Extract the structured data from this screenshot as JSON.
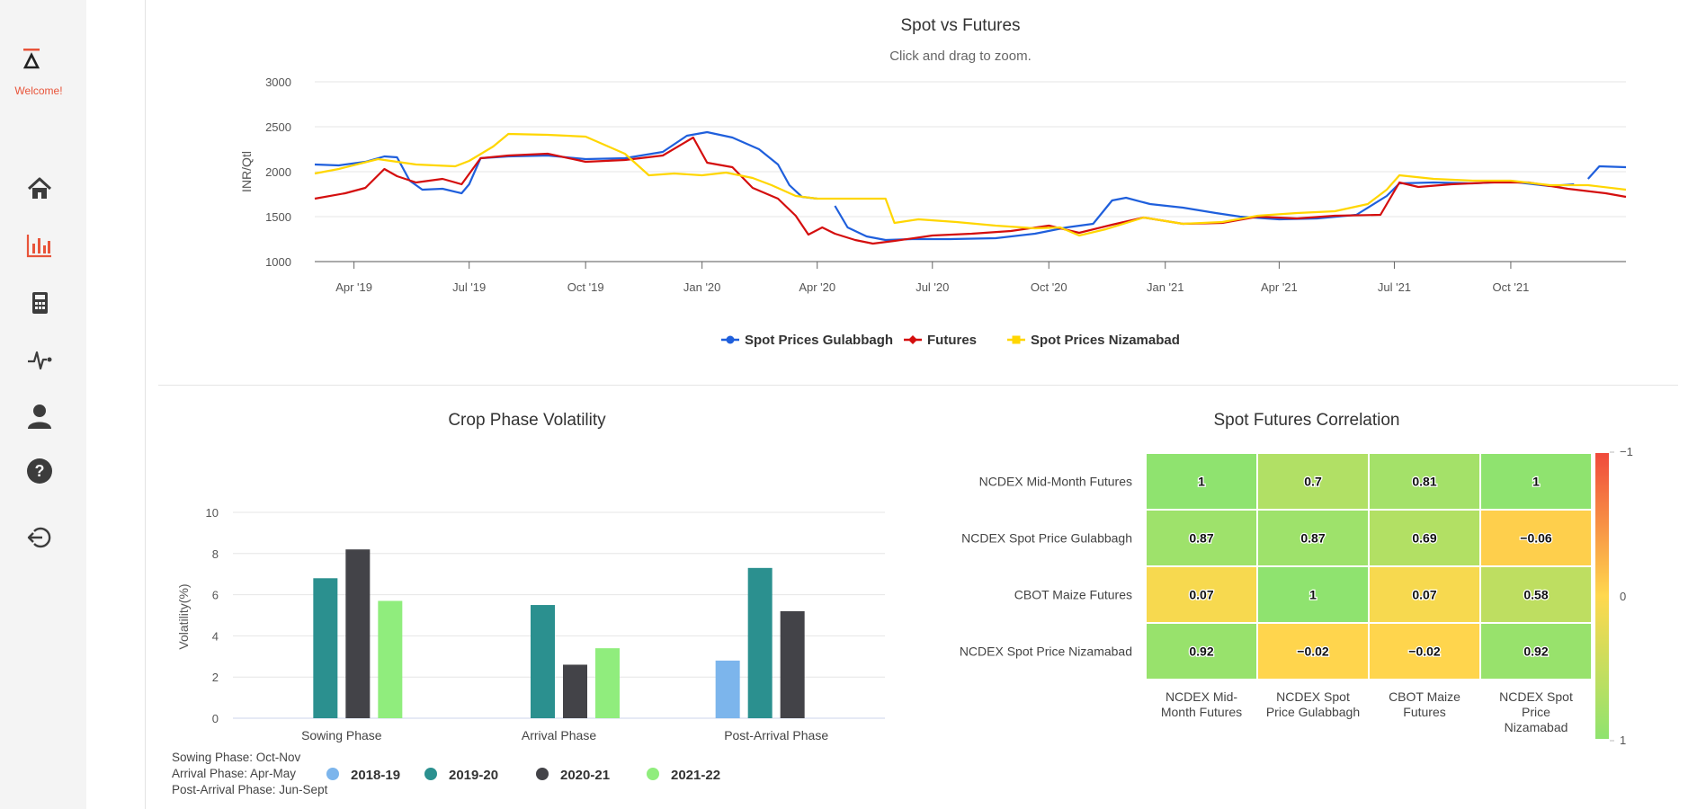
{
  "sidebar": {
    "welcome": "Welcome!",
    "accent": "#e8543a",
    "items": [
      {
        "icon": "home-icon",
        "active": false
      },
      {
        "icon": "bar-chart-icon",
        "active": true
      },
      {
        "icon": "calculator-icon",
        "active": false
      },
      {
        "icon": "pulse-icon",
        "active": false
      },
      {
        "icon": "user-icon",
        "active": false
      },
      {
        "icon": "help-icon",
        "active": false
      },
      {
        "icon": "logout-icon",
        "active": false
      }
    ]
  },
  "spot_futures": {
    "title": "Spot vs Futures",
    "subtitle": "Click and drag to zoom.",
    "ylabel": "INR/Qtl",
    "y_ticks": [
      "3000",
      "2500",
      "2000",
      "1500",
      "1000"
    ],
    "x_ticks": [
      "Apr '19",
      "Jul '19",
      "Oct '19",
      "Jan '20",
      "Apr '20",
      "Jul '20",
      "Oct '20",
      "Jan '21",
      "Apr '21",
      "Jul '21",
      "Oct '21"
    ],
    "legend": [
      "Spot Prices Gulabbagh",
      "Futures",
      "Spot Prices Nizamabad"
    ]
  },
  "volatility": {
    "title": "Crop Phase Volatility",
    "ylabel": "Volatility(%)",
    "y_ticks": [
      "10",
      "8",
      "6",
      "4",
      "2",
      "0"
    ],
    "categories": [
      "Sowing Phase",
      "Arrival Phase",
      "Post-Arrival Phase"
    ],
    "legend": [
      "2018-19",
      "2019-20",
      "2020-21",
      "2021-22"
    ],
    "notes": [
      "Sowing Phase: Oct-Nov",
      "Arrival Phase: Apr-May",
      "Post-Arrival Phase: Jun-Sept"
    ]
  },
  "correlation": {
    "title": "Spot Futures Correlation",
    "row_labels": [
      "NCDEX Mid-Month Futures",
      "NCDEX Spot Price Gulabbagh",
      "CBOT Maize Futures",
      "NCDEX Spot Price Nizamabad"
    ],
    "col_labels": [
      [
        "NCDEX Mid-",
        "Month Futures"
      ],
      [
        "NCDEX Spot",
        "Price Gulabbagh"
      ],
      [
        "CBOT Maize",
        "Futures"
      ],
      [
        "NCDEX Spot",
        "Price",
        "Nizamabad"
      ]
    ],
    "scale_labels": [
      "-1",
      "0",
      "1"
    ]
  },
  "chart_data": [
    {
      "type": "line",
      "title": "Spot vs Futures",
      "subtitle": "Click and drag to zoom.",
      "ylabel": "INR/Qtl",
      "ylim": [
        1000,
        3000
      ],
      "x_range": [
        "2019-03-01",
        "2021-12-31"
      ],
      "legend_position": "bottom",
      "series": [
        {
          "name": "Spot Prices Gulabbagh",
          "color": "#1f5fdc",
          "points": [
            [
              "2019-03-01",
              2080
            ],
            [
              "2019-03-20",
              2070
            ],
            [
              "2019-04-10",
              2110
            ],
            [
              "2019-04-25",
              2170
            ],
            [
              "2019-05-05",
              2160
            ],
            [
              "2019-05-15",
              1900
            ],
            [
              "2019-05-25",
              1800
            ],
            [
              "2019-06-10",
              1810
            ],
            [
              "2019-06-25",
              1760
            ],
            [
              "2019-07-01",
              1860
            ],
            [
              "2019-07-10",
              2150
            ],
            [
              "2019-08-01",
              2170
            ],
            [
              "2019-09-01",
              2180
            ],
            [
              "2019-10-01",
              2140
            ],
            [
              "2019-11-01",
              2150
            ],
            [
              "2019-12-01",
              2220
            ],
            [
              "2019-12-20",
              2400
            ],
            [
              "2020-01-05",
              2440
            ],
            [
              "2020-01-25",
              2380
            ],
            [
              "2020-02-15",
              2250
            ],
            [
              "2020-03-01",
              2080
            ],
            [
              "2020-03-10",
              1850
            ],
            [
              "2020-03-20",
              1720
            ],
            [
              "2020-04-01",
              1700
            ]
          ]
        },
        {
          "name": "Spot Prices Gulabbagh",
          "color": "#1f5fdc",
          "points": [
            [
              "2020-04-15",
              1620
            ],
            [
              "2020-04-25",
              1380
            ],
            [
              "2020-05-10",
              1280
            ],
            [
              "2020-05-25",
              1240
            ],
            [
              "2020-06-15",
              1250
            ],
            [
              "2020-07-15",
              1250
            ],
            [
              "2020-08-20",
              1260
            ],
            [
              "2020-09-20",
              1310
            ],
            [
              "2020-10-15",
              1380
            ],
            [
              "2020-11-05",
              1420
            ],
            [
              "2020-11-20",
              1680
            ],
            [
              "2020-12-01",
              1710
            ],
            [
              "2020-12-20",
              1640
            ],
            [
              "2021-01-15",
              1600
            ],
            [
              "2021-02-10",
              1540
            ],
            [
              "2021-03-01",
              1500
            ],
            [
              "2021-04-01",
              1470
            ],
            [
              "2021-05-01",
              1480
            ],
            [
              "2021-06-01",
              1520
            ],
            [
              "2021-06-25",
              1730
            ],
            [
              "2021-07-05",
              1870
            ],
            [
              "2021-08-01",
              1880
            ],
            [
              "2021-09-01",
              1870
            ],
            [
              "2021-10-01",
              1890
            ],
            [
              "2021-11-01",
              1840
            ],
            [
              "2021-11-20",
              1860
            ]
          ]
        },
        {
          "name": "Spot Prices Gulabbagh",
          "color": "#1f5fdc",
          "points": [
            [
              "2021-12-01",
              1920
            ],
            [
              "2021-12-10",
              2060
            ],
            [
              "2021-12-31",
              2050
            ]
          ]
        },
        {
          "name": "Futures",
          "color": "#d40e0e",
          "points": [
            [
              "2019-03-01",
              1700
            ],
            [
              "2019-03-25",
              1760
            ],
            [
              "2019-04-10",
              1820
            ],
            [
              "2019-04-25",
              2030
            ],
            [
              "2019-05-05",
              1950
            ],
            [
              "2019-05-20",
              1880
            ],
            [
              "2019-06-10",
              1920
            ],
            [
              "2019-06-25",
              1860
            ],
            [
              "2019-07-10",
              2150
            ],
            [
              "2019-08-01",
              2180
            ],
            [
              "2019-09-01",
              2200
            ],
            [
              "2019-10-01",
              2110
            ],
            [
              "2019-11-01",
              2130
            ],
            [
              "2019-12-01",
              2180
            ],
            [
              "2019-12-25",
              2380
            ],
            [
              "2020-01-05",
              2100
            ],
            [
              "2020-01-25",
              2050
            ],
            [
              "2020-02-10",
              1820
            ],
            [
              "2020-03-01",
              1700
            ],
            [
              "2020-03-15",
              1510
            ],
            [
              "2020-03-25",
              1300
            ],
            [
              "2020-04-05",
              1380
            ],
            [
              "2020-04-15",
              1310
            ],
            [
              "2020-05-01",
              1240
            ],
            [
              "2020-05-15",
              1200
            ],
            [
              "2020-06-01",
              1230
            ],
            [
              "2020-07-01",
              1290
            ],
            [
              "2020-08-01",
              1310
            ],
            [
              "2020-09-01",
              1340
            ],
            [
              "2020-10-01",
              1400
            ],
            [
              "2020-10-25",
              1320
            ],
            [
              "2020-11-20",
              1410
            ],
            [
              "2020-12-15",
              1490
            ],
            [
              "2021-01-15",
              1420
            ],
            [
              "2021-02-15",
              1430
            ],
            [
              "2021-03-15",
              1500
            ],
            [
              "2021-04-15",
              1480
            ],
            [
              "2021-05-15",
              1510
            ],
            [
              "2021-06-20",
              1520
            ],
            [
              "2021-07-05",
              1880
            ],
            [
              "2021-07-20",
              1830
            ],
            [
              "2021-08-15",
              1860
            ],
            [
              "2021-09-15",
              1880
            ],
            [
              "2021-10-15",
              1880
            ],
            [
              "2021-11-15",
              1810
            ],
            [
              "2021-12-15",
              1760
            ],
            [
              "2021-12-31",
              1720
            ]
          ]
        },
        {
          "name": "Spot Prices Nizamabad",
          "color": "#ffd600",
          "points": [
            [
              "2019-03-01",
              1980
            ],
            [
              "2019-03-20",
              2030
            ],
            [
              "2019-04-20",
              2140
            ],
            [
              "2019-05-20",
              2080
            ],
            [
              "2019-06-20",
              2060
            ],
            [
              "2019-07-01",
              2120
            ],
            [
              "2019-07-20",
              2280
            ],
            [
              "2019-08-01",
              2420
            ],
            [
              "2019-09-01",
              2410
            ],
            [
              "2019-10-01",
              2390
            ],
            [
              "2019-11-01",
              2200
            ],
            [
              "2019-11-20",
              1960
            ],
            [
              "2019-12-10",
              1980
            ],
            [
              "2020-01-01",
              1960
            ],
            [
              "2020-01-20",
              1990
            ],
            [
              "2020-02-10",
              1930
            ],
            [
              "2020-02-25",
              1850
            ],
            [
              "2020-03-15",
              1730
            ],
            [
              "2020-04-01",
              1700
            ],
            [
              "2020-05-01",
              1700
            ],
            [
              "2020-05-25",
              1700
            ],
            [
              "2020-06-01",
              1430
            ],
            [
              "2020-06-20",
              1470
            ],
            [
              "2020-07-20",
              1440
            ],
            [
              "2020-08-20",
              1400
            ],
            [
              "2020-09-20",
              1370
            ],
            [
              "2020-10-10",
              1380
            ],
            [
              "2020-10-25",
              1290
            ],
            [
              "2020-11-15",
              1360
            ],
            [
              "2020-12-15",
              1490
            ],
            [
              "2021-01-15",
              1420
            ],
            [
              "2021-02-15",
              1440
            ],
            [
              "2021-03-15",
              1510
            ],
            [
              "2021-04-15",
              1540
            ],
            [
              "2021-05-15",
              1560
            ],
            [
              "2021-06-10",
              1640
            ],
            [
              "2021-06-25",
              1800
            ],
            [
              "2021-07-05",
              1960
            ],
            [
              "2021-08-01",
              1920
            ],
            [
              "2021-09-01",
              1900
            ],
            [
              "2021-10-01",
              1900
            ],
            [
              "2021-11-01",
              1850
            ],
            [
              "2021-12-01",
              1850
            ],
            [
              "2021-12-31",
              1800
            ]
          ]
        }
      ]
    },
    {
      "type": "bar",
      "title": "Crop Phase Volatility",
      "ylabel": "Volatility(%)",
      "ylim": [
        0,
        10
      ],
      "categories": [
        "Sowing Phase",
        "Arrival Phase",
        "Post-Arrival Phase"
      ],
      "legend_position": "bottom",
      "series": [
        {
          "name": "2018-19",
          "color": "#7cb5ec",
          "values": [
            null,
            null,
            2.8
          ]
        },
        {
          "name": "2019-20",
          "color": "#2b908f",
          "values": [
            6.8,
            5.5,
            7.3
          ]
        },
        {
          "name": "2020-21",
          "color": "#434348",
          "values": [
            8.2,
            2.6,
            5.2
          ]
        },
        {
          "name": "2021-22",
          "color": "#90ed7d",
          "values": [
            5.7,
            3.4,
            null
          ]
        }
      ]
    },
    {
      "type": "heatmap",
      "title": "Spot Futures Correlation",
      "rows": [
        "NCDEX Mid-Month Futures",
        "NCDEX Spot Price Gulabbagh",
        "CBOT Maize Futures",
        "NCDEX Spot Price Nizamabad"
      ],
      "columns": [
        "NCDEX Mid-Month Futures",
        "NCDEX Spot Price Gulabbagh",
        "CBOT Maize Futures",
        "NCDEX Spot Price Nizamabad"
      ],
      "values": [
        [
          1,
          0.7,
          0.81,
          1
        ],
        [
          0.87,
          0.87,
          0.69,
          -0.06
        ],
        [
          0.07,
          1,
          0.07,
          0.58
        ],
        [
          0.92,
          -0.02,
          -0.02,
          0.92
        ]
      ],
      "color_scale": {
        "min": -1,
        "max": 1,
        "colors": [
          "#f04a3c",
          "#ffd84d",
          "#8fe36f"
        ]
      },
      "legend_position": "right"
    }
  ]
}
